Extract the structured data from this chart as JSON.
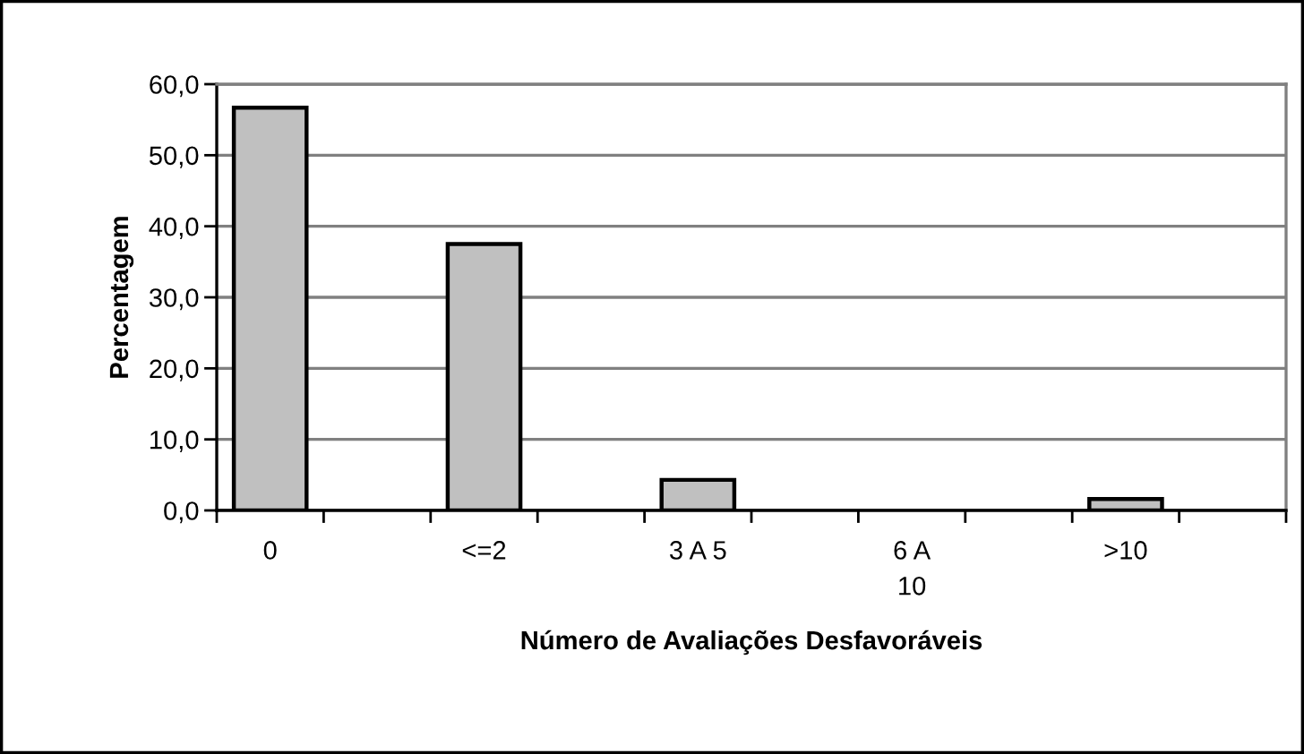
{
  "chart_data": {
    "type": "bar",
    "xlabel": "Número de Avaliações Desfavoráveis",
    "ylabel": "Percentagem",
    "categories": [
      "0",
      null,
      "<=2",
      null,
      "3 A 5",
      null,
      "6 A\n10",
      null,
      ">10",
      null
    ],
    "values": [
      56.7,
      null,
      37.5,
      null,
      4.3,
      null,
      null,
      null,
      1.6,
      null
    ],
    "color": "#c0c0c0",
    "ylim": [
      0,
      60
    ],
    "yticks": [
      {
        "value": 0,
        "label": "0,0"
      },
      {
        "value": 10,
        "label": "10,0"
      },
      {
        "value": 20,
        "label": "20,0"
      },
      {
        "value": 30,
        "label": "30,0"
      },
      {
        "value": 40,
        "label": "40,0"
      },
      {
        "value": 50,
        "label": "50,0"
      },
      {
        "value": 60,
        "label": "60,0"
      }
    ],
    "grid": "y"
  }
}
